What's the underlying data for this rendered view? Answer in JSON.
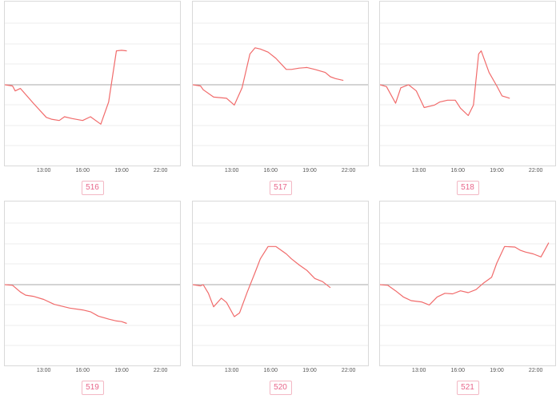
{
  "style": {
    "line_color": "#f16b6b",
    "grid_color": "#eeeeee",
    "baseline_color": "#aaaaaa",
    "badge_color": "#e8658a"
  },
  "panels": [
    {
      "label": "516"
    },
    {
      "label": "517"
    },
    {
      "label": "518"
    },
    {
      "label": "519"
    },
    {
      "label": "520"
    },
    {
      "label": "521"
    }
  ],
  "chart_data": [
    {
      "type": "line",
      "xticks": [
        "13:00",
        "16:00",
        "19:00",
        "22:00"
      ],
      "xlim": [
        10,
        23.5
      ],
      "ylim": [
        -1,
        1
      ],
      "baseline": 0,
      "grid": true,
      "series": [
        {
          "x": [
            10,
            10.6,
            10.8,
            11.2,
            12.2,
            13.2,
            13.6,
            14.2,
            14.6,
            15.2,
            16.0,
            16.6,
            17.4,
            18.0,
            18.6,
            19.0,
            19.4
          ],
          "y": [
            0,
            -0.02,
            -0.1,
            -0.06,
            -0.3,
            -0.53,
            -0.56,
            -0.58,
            -0.52,
            -0.55,
            -0.58,
            -0.52,
            -0.64,
            -0.28,
            0.55,
            0.56,
            0.55
          ]
        }
      ]
    },
    {
      "type": "line",
      "xticks": [
        "13:00",
        "16:00",
        "19:00",
        "22:00"
      ],
      "xlim": [
        10,
        23.5
      ],
      "ylim": [
        -1,
        1
      ],
      "baseline": 0,
      "grid": true,
      "series": [
        {
          "x": [
            10,
            10.6,
            10.8,
            11.6,
            12.6,
            13.2,
            13.8,
            14.4,
            14.8,
            15.2,
            15.8,
            16.4,
            17.2,
            17.6,
            18.2,
            18.8,
            19.4,
            20.2,
            20.6,
            21.0,
            21.6
          ],
          "y": [
            0,
            -0.02,
            -0.08,
            -0.2,
            -0.22,
            -0.33,
            -0.05,
            0.5,
            0.6,
            0.58,
            0.53,
            0.43,
            0.25,
            0.25,
            0.27,
            0.28,
            0.25,
            0.2,
            0.13,
            0.1,
            0.07
          ]
        }
      ]
    },
    {
      "type": "line",
      "xticks": [
        "13:00",
        "16:00",
        "19:00",
        "22:00"
      ],
      "xlim": [
        10,
        23.5
      ],
      "ylim": [
        -1,
        1
      ],
      "baseline": 0,
      "grid": true,
      "series": [
        {
          "x": [
            10,
            10.5,
            11.2,
            11.6,
            12.2,
            12.8,
            13.4,
            14.2,
            14.6,
            15.2,
            15.8,
            16.2,
            16.8,
            17.2,
            17.6,
            17.8,
            18.4,
            19.0,
            19.4,
            20.0
          ],
          "y": [
            0,
            -0.03,
            -0.3,
            -0.05,
            0.0,
            -0.1,
            -0.37,
            -0.33,
            -0.28,
            -0.25,
            -0.25,
            -0.38,
            -0.5,
            -0.33,
            0.5,
            0.55,
            0.2,
            -0.02,
            -0.18,
            -0.22
          ]
        }
      ]
    },
    {
      "type": "line",
      "xticks": [
        "13:00",
        "16:00",
        "19:00",
        "22:00"
      ],
      "xlim": [
        10,
        23.5
      ],
      "ylim": [
        -1,
        1
      ],
      "baseline": 0,
      "grid": true,
      "series": [
        {
          "x": [
            10,
            10.6,
            11.2,
            11.6,
            12.2,
            13.0,
            13.8,
            15.0,
            16.0,
            16.6,
            17.2,
            18.0,
            18.6,
            19.0,
            19.4
          ],
          "y": [
            0,
            -0.01,
            -0.12,
            -0.17,
            -0.19,
            -0.24,
            -0.32,
            -0.38,
            -0.41,
            -0.44,
            -0.51,
            -0.56,
            -0.59,
            -0.6,
            -0.63
          ]
        }
      ]
    },
    {
      "type": "line",
      "xticks": [
        "13:00",
        "16:00",
        "19:00",
        "22:00"
      ],
      "xlim": [
        10,
        23.5
      ],
      "ylim": [
        -1,
        1
      ],
      "baseline": 0,
      "grid": true,
      "series": [
        {
          "x": [
            10,
            10.6,
            10.8,
            11.2,
            11.6,
            12.2,
            12.6,
            13.2,
            13.6,
            14.2,
            14.8,
            15.2,
            15.8,
            16.4,
            17.2,
            17.6,
            18.2,
            18.8,
            19.4,
            20.0,
            20.6
          ],
          "y": [
            0,
            -0.02,
            0.0,
            -0.14,
            -0.36,
            -0.22,
            -0.29,
            -0.52,
            -0.46,
            -0.12,
            0.2,
            0.42,
            0.62,
            0.62,
            0.5,
            0.42,
            0.32,
            0.23,
            0.1,
            0.05,
            -0.05
          ]
        }
      ]
    },
    {
      "type": "line",
      "xticks": [
        "13:00",
        "16:00",
        "19:00",
        "22:00"
      ],
      "xlim": [
        10,
        23.5
      ],
      "ylim": [
        -1,
        1
      ],
      "baseline": 0,
      "grid": true,
      "series": [
        {
          "x": [
            10,
            10.6,
            11.2,
            11.8,
            12.4,
            13.2,
            13.8,
            14.4,
            15.0,
            15.6,
            16.2,
            16.8,
            17.4,
            18.0,
            18.6,
            19.0,
            19.6,
            20.4,
            20.8,
            21.2,
            21.8,
            22.4,
            23.0
          ],
          "y": [
            0,
            -0.01,
            -0.1,
            -0.2,
            -0.26,
            -0.28,
            -0.33,
            -0.2,
            -0.14,
            -0.15,
            -0.1,
            -0.13,
            -0.08,
            0.03,
            0.12,
            0.35,
            0.62,
            0.61,
            0.56,
            0.53,
            0.5,
            0.45,
            0.68
          ]
        }
      ]
    }
  ]
}
